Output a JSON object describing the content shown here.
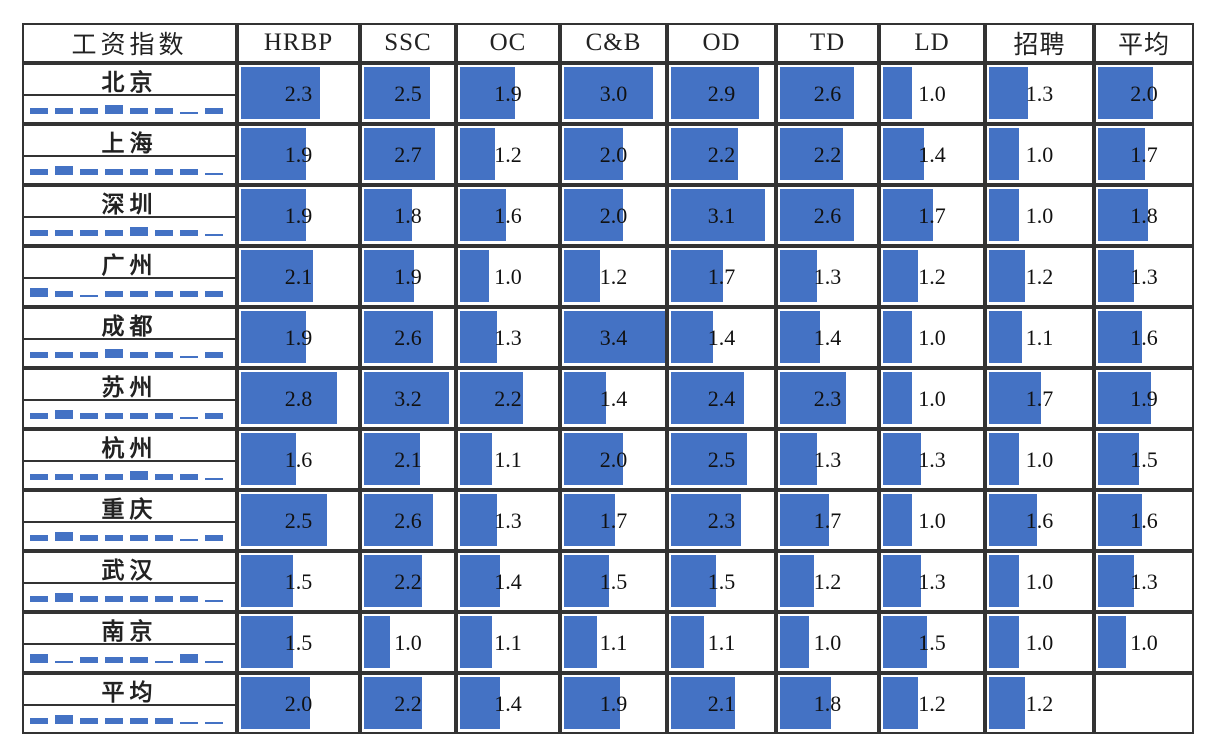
{
  "chart_data": {
    "type": "table",
    "corner_label": "工资指数",
    "columns": [
      "HRBP",
      "SSC",
      "OC",
      "C&B",
      "OD",
      "TD",
      "LD",
      "招聘",
      "平均"
    ],
    "rows": [
      {
        "city": "北京",
        "values": [
          2.3,
          2.5,
          1.9,
          3.0,
          2.9,
          2.6,
          1.0,
          1.3,
          2.0
        ]
      },
      {
        "city": "上海",
        "values": [
          1.9,
          2.7,
          1.2,
          2.0,
          2.2,
          2.2,
          1.4,
          1.0,
          1.7
        ]
      },
      {
        "city": "深圳",
        "values": [
          1.9,
          1.8,
          1.6,
          2.0,
          3.1,
          2.6,
          1.7,
          1.0,
          1.8
        ]
      },
      {
        "city": "广州",
        "values": [
          2.1,
          1.9,
          1.0,
          1.2,
          1.7,
          1.3,
          1.2,
          1.2,
          1.3
        ]
      },
      {
        "city": "成都",
        "values": [
          1.9,
          2.6,
          1.3,
          3.4,
          1.4,
          1.4,
          1.0,
          1.1,
          1.6
        ]
      },
      {
        "city": "苏州",
        "values": [
          2.8,
          3.2,
          2.2,
          1.4,
          2.4,
          2.3,
          1.0,
          1.7,
          1.9
        ]
      },
      {
        "city": "杭州",
        "values": [
          1.6,
          2.1,
          1.1,
          2.0,
          2.5,
          1.3,
          1.3,
          1.0,
          1.5
        ]
      },
      {
        "city": "重庆",
        "values": [
          2.5,
          2.6,
          1.3,
          1.7,
          2.3,
          1.7,
          1.0,
          1.6,
          1.6
        ]
      },
      {
        "city": "武汉",
        "values": [
          1.5,
          2.2,
          1.4,
          1.5,
          1.5,
          1.2,
          1.3,
          1.0,
          1.3
        ]
      },
      {
        "city": "南京",
        "values": [
          1.5,
          1.0,
          1.1,
          1.1,
          1.1,
          1.0,
          1.5,
          1.0,
          1.0
        ]
      },
      {
        "city": "平均",
        "values": [
          2.0,
          2.2,
          1.4,
          1.9,
          2.1,
          1.8,
          1.2,
          1.2,
          null
        ]
      }
    ],
    "bar_max": 3.4,
    "bar_color": "#4472c4",
    "sparkline": "per-row mini bars across the 8 roles (excluding 平均)",
    "grid": true
  }
}
